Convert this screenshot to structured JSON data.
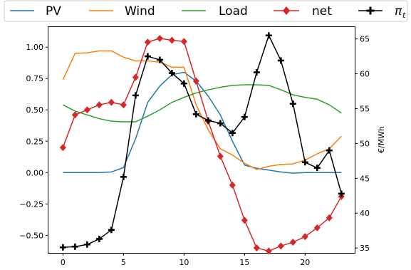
{
  "chart_data": {
    "type": "line",
    "x": [
      0,
      1,
      2,
      3,
      4,
      5,
      6,
      7,
      8,
      9,
      10,
      11,
      12,
      13,
      14,
      15,
      16,
      17,
      18,
      19,
      20,
      21,
      22,
      23
    ],
    "xticks": [
      "0",
      "5",
      "10",
      "15",
      "20"
    ],
    "xlim": [
      -1.2,
      24.1
    ],
    "ylim_left": [
      -0.64,
      1.16
    ],
    "yticks_left": [
      "−0.50",
      "−0.25",
      "0.00",
      "0.25",
      "0.50",
      "0.75",
      "1.00"
    ],
    "ylim_right": [
      34.3,
      66.7
    ],
    "yticks_right": [
      "35",
      "40",
      "45",
      "50",
      "55",
      "60",
      "65"
    ],
    "ylabel_right": "€/MWh",
    "legend_position": "top",
    "series": [
      {
        "name": "PV",
        "axis": "left",
        "color": "#1f77b4",
        "marker": "none",
        "values": [
          0,
          0,
          0,
          0,
          0.005,
          0.04,
          0.27,
          0.56,
          0.69,
          0.78,
          0.8,
          0.73,
          0.61,
          0.46,
          0.25,
          0.06,
          0.035,
          0.02,
          0.005,
          -0.005,
          0,
          0,
          0,
          0
        ]
      },
      {
        "name": "Wind",
        "axis": "left",
        "color": "#ff7f0e",
        "marker": "none",
        "values": [
          0.74,
          0.95,
          0.955,
          0.97,
          0.97,
          0.92,
          0.89,
          0.89,
          0.88,
          0.84,
          0.84,
          0.54,
          0.34,
          0.19,
          0.14,
          0.075,
          0.025,
          0.05,
          0.065,
          0.07,
          0.1,
          0.15,
          0.19,
          0.29
        ]
      },
      {
        "name": "Load",
        "axis": "left",
        "color": "#2ca02c",
        "marker": "none",
        "values": [
          0.54,
          0.49,
          0.46,
          0.43,
          0.41,
          0.405,
          0.405,
          0.45,
          0.5,
          0.56,
          0.6,
          0.635,
          0.66,
          0.68,
          0.695,
          0.7,
          0.7,
          0.695,
          0.66,
          0.62,
          0.6,
          0.585,
          0.54,
          0.475
        ]
      },
      {
        "name": "net",
        "axis": "left",
        "color": "#d62728",
        "marker": "diamond",
        "values": [
          0.2,
          0.46,
          0.5,
          0.54,
          0.56,
          0.54,
          0.76,
          1.04,
          1.07,
          1.055,
          1.045,
          0.73,
          0.41,
          0.13,
          -0.1,
          -0.38,
          -0.6,
          -0.625,
          -0.585,
          -0.555,
          -0.51,
          -0.44,
          -0.36,
          -0.19
        ]
      },
      {
        "name": "π_t",
        "axis": "right",
        "color": "#000000",
        "marker": "plus",
        "values": [
          35.1,
          35.2,
          35.5,
          36.3,
          37.6,
          45.2,
          56.9,
          62.5,
          62.0,
          60.1,
          58.6,
          54.2,
          53.3,
          52.9,
          51.5,
          53.8,
          60.2,
          65.5,
          61.9,
          55.7,
          47.3,
          46.5,
          49.0,
          42.8
        ]
      }
    ],
    "legend": {
      "labels": [
        "PV",
        "Wind",
        "Load",
        "net"
      ],
      "pi_label_main": "π",
      "pi_label_sub": "t"
    }
  }
}
